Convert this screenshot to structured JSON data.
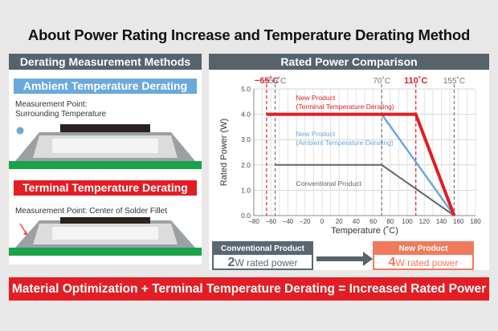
{
  "title": "About Power Rating Increase and Temperature Derating Method",
  "left_panel": {
    "heading": "Derating Measurement Methods",
    "ambient": {
      "heading": "Ambient Temperature Derating",
      "note_line1": "Measurement Point:",
      "note_line2": "Surrounding Temperature"
    },
    "terminal": {
      "heading": "Terminal Temperature Derating",
      "note": "Measurement Point: Center of Solder Fillet"
    }
  },
  "right_panel": {
    "heading": "Rated Power Comparison"
  },
  "colors": {
    "panel_head": "#56636b",
    "ambient_blue": "#6aa9dd",
    "terminal_red": "#e21d24",
    "conventional_gray": "#5b6770",
    "new_orange": "#f07a5c",
    "pcb_green": "#1aa34a"
  },
  "chart_data": {
    "type": "line",
    "ylabel": "Rated Power (W)",
    "xlabel": "Temperature (˚C)",
    "xlim": [
      -80,
      180
    ],
    "ylim": [
      0,
      5.0
    ],
    "x_ticks": [
      "−80",
      "−70",
      "−60",
      "−50",
      "−40",
      "−30",
      "−20",
      "−10",
      "0",
      "10",
      "20",
      "30",
      "40",
      "50",
      "60",
      "70",
      "80",
      "90",
      "100",
      "110",
      "120",
      "130",
      "140",
      "150",
      "160",
      "170",
      "180"
    ],
    "y_ticks": [
      "0.0",
      "1.0",
      "2.0",
      "3.0",
      "4.0",
      "5.0"
    ],
    "vlines": [
      {
        "x": -65,
        "label": "−65˚C",
        "color": "#e21d24",
        "bold": true
      },
      {
        "x": -55,
        "label": "−55˚C",
        "color": "#777777",
        "bold": false
      },
      {
        "x": 70,
        "label": "70˚C",
        "color": "#777777",
        "bold": false
      },
      {
        "x": 110,
        "label": "110˚C",
        "color": "#e21d24",
        "bold": true
      },
      {
        "x": 155,
        "label": "155˚C",
        "color": "#777777",
        "bold": false
      }
    ],
    "series": [
      {
        "name": "New Product\n(Terminal Temperature Derating)",
        "color": "#e21d24",
        "width": 4,
        "x": [
          -65,
          110,
          155
        ],
        "y": [
          4,
          4,
          0
        ]
      },
      {
        "name": "New Product\n(Ambient Temperature Derating)",
        "color": "#6aa9dd",
        "width": 2.5,
        "x": [
          -55,
          70,
          155
        ],
        "y": [
          4,
          4,
          0
        ]
      },
      {
        "name": "Conventional Product",
        "color": "#5b6770",
        "width": 2,
        "x": [
          -55,
          70,
          155
        ],
        "y": [
          2,
          2,
          0
        ]
      }
    ]
  },
  "comparison": {
    "conventional": {
      "label": "Conventional Product",
      "value": "2",
      "unit": "W rated power"
    },
    "new": {
      "label": "New Product",
      "value": "4",
      "unit": "W rated power"
    }
  },
  "bottom_banner": "Material Optimization + Terminal Temperature Derating = Increased Rated Power"
}
